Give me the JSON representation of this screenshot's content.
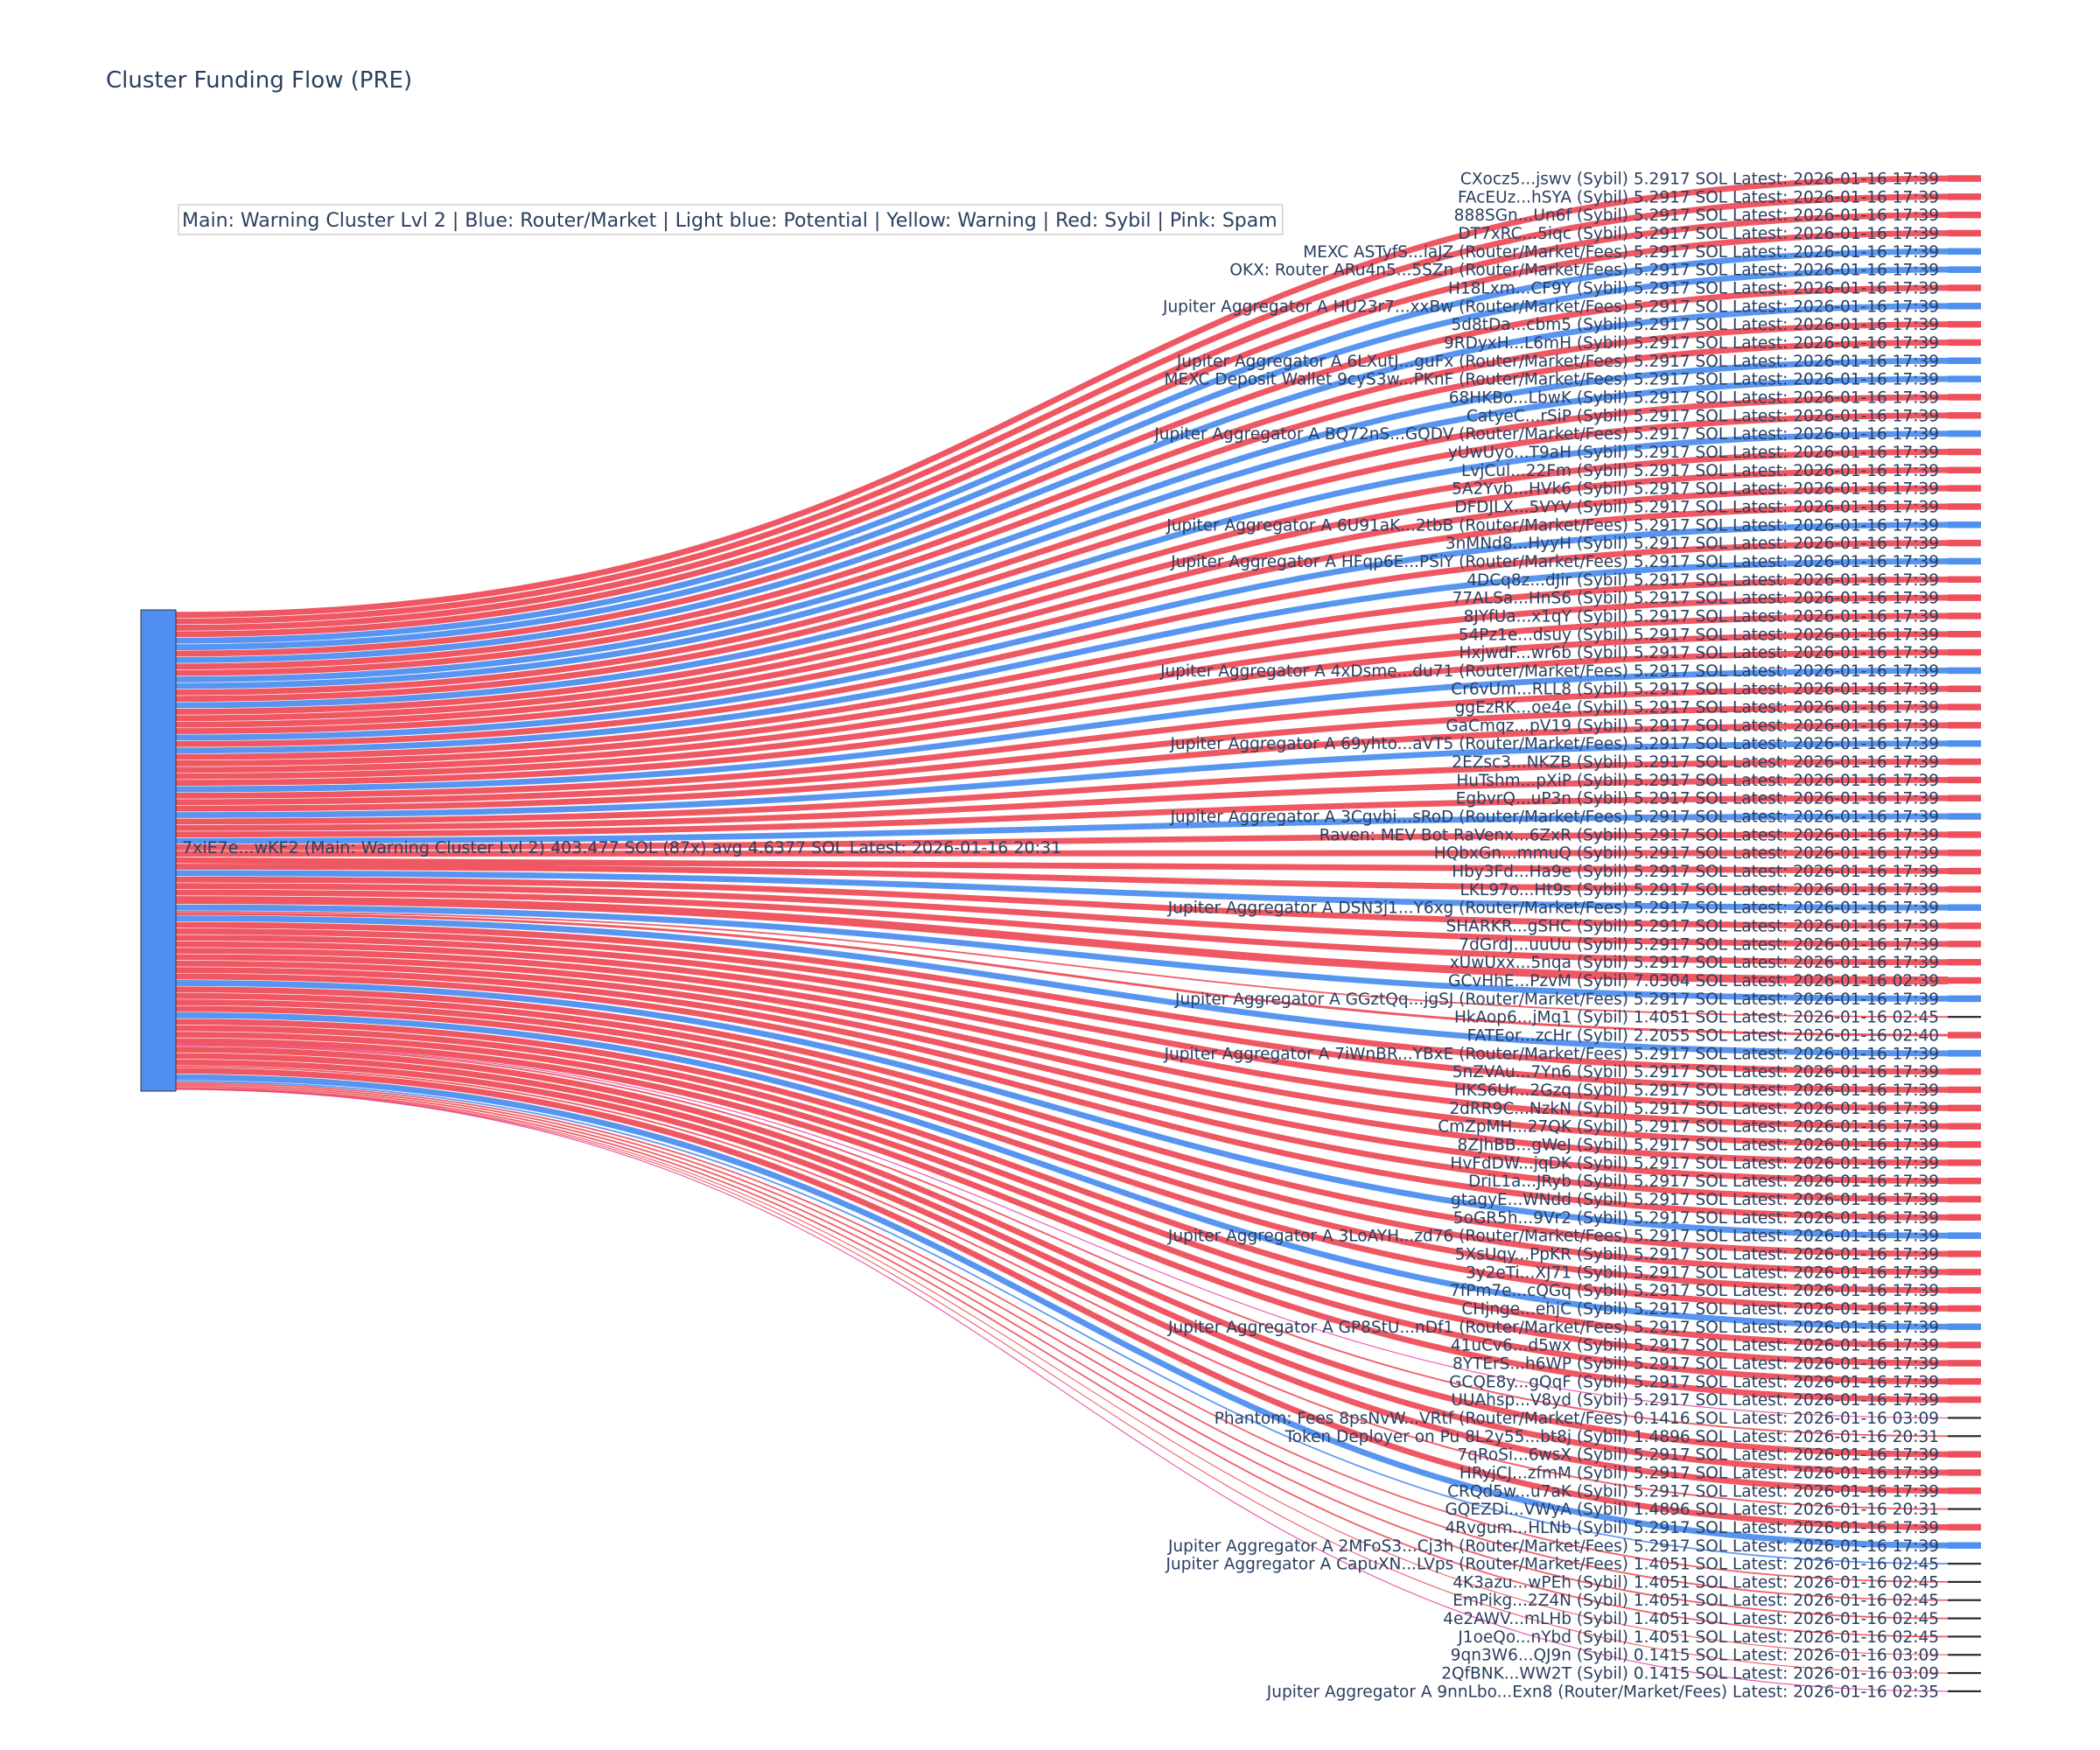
{
  "chart_data": {
    "type": "sankey",
    "title": "Cluster Funding Flow (PRE)",
    "legend_text": "Main: Warning Cluster Lvl 2  |  Blue: Router/Market | Light blue: Potential | Yellow: Warning | Red: Sybil | Pink: Spam",
    "colors": {
      "router": "#4f8ff0",
      "sybil": "#ee4f5a",
      "spam": "#e83ea0",
      "neutral": "#2a2a2a",
      "source": "#4f8ff0"
    },
    "source": {
      "label": "7xiE7e...wKF2 (Main: Warning Cluster Lvl 2) 403.477 SOL (87x) avg 4.6377 SOL Latest: 2026-01-16 20:31"
    },
    "targets": [
      {
        "label": "CXocz5...jswv (Sybil) 5.2917 SOL Latest: 2026-01-16 17:39",
        "cat": "sybil",
        "value": 5.2917
      },
      {
        "label": "FAcEUz...hSYA (Sybil) 5.2917 SOL Latest: 2026-01-16 17:39",
        "cat": "sybil",
        "value": 5.2917
      },
      {
        "label": "888SGn...Un6f (Sybil) 5.2917 SOL Latest: 2026-01-16 17:39",
        "cat": "sybil",
        "value": 5.2917
      },
      {
        "label": "DT7xRC...5iqc (Sybil) 5.2917 SOL Latest: 2026-01-16 17:39",
        "cat": "sybil",
        "value": 5.2917
      },
      {
        "label": "MEXC ASTyfS...iaJZ (Router/Market/Fees) 5.2917 SOL Latest: 2026-01-16 17:39",
        "cat": "router",
        "value": 5.2917
      },
      {
        "label": "OKX: Router ARu4n5...5SZn (Router/Market/Fees) 5.2917 SOL Latest: 2026-01-16 17:39",
        "cat": "router",
        "value": 5.2917
      },
      {
        "label": "H18Lxm...CF9Y (Sybil) 5.2917 SOL Latest: 2026-01-16 17:39",
        "cat": "sybil",
        "value": 5.2917
      },
      {
        "label": "Jupiter Aggregator A HU23r7...xxBw (Router/Market/Fees) 5.2917 SOL Latest: 2026-01-16 17:39",
        "cat": "router",
        "value": 5.2917
      },
      {
        "label": "5d8tDa...cbm5 (Sybil) 5.2917 SOL Latest: 2026-01-16 17:39",
        "cat": "sybil",
        "value": 5.2917
      },
      {
        "label": "9RDyxH...L6mH (Sybil) 5.2917 SOL Latest: 2026-01-16 17:39",
        "cat": "sybil",
        "value": 5.2917
      },
      {
        "label": "Jupiter Aggregator A 6LXutJ...guFx (Router/Market/Fees) 5.2917 SOL Latest: 2026-01-16 17:39",
        "cat": "router",
        "value": 5.2917
      },
      {
        "label": "MEXC Deposit Wallet 9cyS3w...PKnF (Router/Market/Fees) 5.2917 SOL Latest: 2026-01-16 17:39",
        "cat": "router",
        "value": 5.2917
      },
      {
        "label": "68HKBo...LbwK (Sybil) 5.2917 SOL Latest: 2026-01-16 17:39",
        "cat": "sybil",
        "value": 5.2917
      },
      {
        "label": "CatyeC...rSiP (Sybil) 5.2917 SOL Latest: 2026-01-16 17:39",
        "cat": "sybil",
        "value": 5.2917
      },
      {
        "label": "Jupiter Aggregator A BQ72nS...GQDV (Router/Market/Fees) 5.2917 SOL Latest: 2026-01-16 17:39",
        "cat": "router",
        "value": 5.2917
      },
      {
        "label": "yUwUyo...T9aH (Sybil) 5.2917 SOL Latest: 2026-01-16 17:39",
        "cat": "sybil",
        "value": 5.2917
      },
      {
        "label": "LvjCul...22Fm (Sybil) 5.2917 SOL Latest: 2026-01-16 17:39",
        "cat": "sybil",
        "value": 5.2917
      },
      {
        "label": "5A2Yvb...HVk6 (Sybil) 5.2917 SOL Latest: 2026-01-16 17:39",
        "cat": "sybil",
        "value": 5.2917
      },
      {
        "label": "DFDJLX...5VYV (Sybil) 5.2917 SOL Latest: 2026-01-16 17:39",
        "cat": "sybil",
        "value": 5.2917
      },
      {
        "label": "Jupiter Aggregator A 6U91aK...2tbB (Router/Market/Fees) 5.2917 SOL Latest: 2026-01-16 17:39",
        "cat": "router",
        "value": 5.2917
      },
      {
        "label": "3nMNd8...HyyH (Sybil) 5.2917 SOL Latest: 2026-01-16 17:39",
        "cat": "sybil",
        "value": 5.2917
      },
      {
        "label": "Jupiter Aggregator A HFqp6E...PSiY (Router/Market/Fees) 5.2917 SOL Latest: 2026-01-16 17:39",
        "cat": "router",
        "value": 5.2917
      },
      {
        "label": "4DCq8z...dJir (Sybil) 5.2917 SOL Latest: 2026-01-16 17:39",
        "cat": "sybil",
        "value": 5.2917
      },
      {
        "label": "77ALSa...HnS6 (Sybil) 5.2917 SOL Latest: 2026-01-16 17:39",
        "cat": "sybil",
        "value": 5.2917
      },
      {
        "label": "8JYfUa...x1qY (Sybil) 5.2917 SOL Latest: 2026-01-16 17:39",
        "cat": "sybil",
        "value": 5.2917
      },
      {
        "label": "54Pz1e...dsuy (Sybil) 5.2917 SOL Latest: 2026-01-16 17:39",
        "cat": "sybil",
        "value": 5.2917
      },
      {
        "label": "HxjwdF...wr6b (Sybil) 5.2917 SOL Latest: 2026-01-16 17:39",
        "cat": "sybil",
        "value": 5.2917
      },
      {
        "label": "Jupiter Aggregator A 4xDsme...du71 (Router/Market/Fees) 5.2917 SOL Latest: 2026-01-16 17:39",
        "cat": "router",
        "value": 5.2917
      },
      {
        "label": "Cr6vUm...RLL8 (Sybil) 5.2917 SOL Latest: 2026-01-16 17:39",
        "cat": "sybil",
        "value": 5.2917
      },
      {
        "label": "ggEzRK...oe4e (Sybil) 5.2917 SOL Latest: 2026-01-16 17:39",
        "cat": "sybil",
        "value": 5.2917
      },
      {
        "label": "GaCmqz...pV19 (Sybil) 5.2917 SOL Latest: 2026-01-16 17:39",
        "cat": "sybil",
        "value": 5.2917
      },
      {
        "label": "Jupiter Aggregator A 69yhto...aVT5 (Router/Market/Fees) 5.2917 SOL Latest: 2026-01-16 17:39",
        "cat": "router",
        "value": 5.2917
      },
      {
        "label": "2EZsc3...NKZB (Sybil) 5.2917 SOL Latest: 2026-01-16 17:39",
        "cat": "sybil",
        "value": 5.2917
      },
      {
        "label": "HuTshm...pXiP (Sybil) 5.2917 SOL Latest: 2026-01-16 17:39",
        "cat": "sybil",
        "value": 5.2917
      },
      {
        "label": "EgbvrQ...uP3n (Sybil) 5.2917 SOL Latest: 2026-01-16 17:39",
        "cat": "sybil",
        "value": 5.2917
      },
      {
        "label": "Jupiter Aggregator A 3Cgvbi...sRoD (Router/Market/Fees) 5.2917 SOL Latest: 2026-01-16 17:39",
        "cat": "router",
        "value": 5.2917
      },
      {
        "label": "Raven: MEV Bot RaVenx...6ZxR (Sybil) 5.2917 SOL Latest: 2026-01-16 17:39",
        "cat": "sybil",
        "value": 5.2917
      },
      {
        "label": "HQbxGn...mmuQ (Sybil) 5.2917 SOL Latest: 2026-01-16 17:39",
        "cat": "sybil",
        "value": 5.2917
      },
      {
        "label": "Hby3Fd...Ha9e (Sybil) 5.2917 SOL Latest: 2026-01-16 17:39",
        "cat": "sybil",
        "value": 5.2917
      },
      {
        "label": "LKL97o...Ht9s (Sybil) 5.2917 SOL Latest: 2026-01-16 17:39",
        "cat": "sybil",
        "value": 5.2917
      },
      {
        "label": "Jupiter Aggregator A DSN3j1...Y6xg (Router/Market/Fees) 5.2917 SOL Latest: 2026-01-16 17:39",
        "cat": "router",
        "value": 5.2917
      },
      {
        "label": "SHARKR...gSHC (Sybil) 5.2917 SOL Latest: 2026-01-16 17:39",
        "cat": "sybil",
        "value": 5.2917
      },
      {
        "label": "7dGrdJ...uuUu (Sybil) 5.2917 SOL Latest: 2026-01-16 17:39",
        "cat": "sybil",
        "value": 5.2917
      },
      {
        "label": "xUwUxx...5nqa (Sybil) 5.2917 SOL Latest: 2026-01-16 17:39",
        "cat": "sybil",
        "value": 5.2917
      },
      {
        "label": "GCvHhE...PzvM (Sybil) 7.0304 SOL Latest: 2026-01-16 02:39",
        "cat": "sybil",
        "value": 7.0304
      },
      {
        "label": "Jupiter Aggregator A GGztQq...jgSJ (Router/Market/Fees) 5.2917 SOL Latest: 2026-01-16 17:39",
        "cat": "router",
        "value": 5.2917
      },
      {
        "label": "HkAop6...jMq1 (Sybil) 1.4051 SOL Latest: 2026-01-16 02:45",
        "cat": "sybil",
        "value": 1.4051
      },
      {
        "label": "FATEor...zcHr (Sybil) 2.2055 SOL Latest: 2026-01-16 02:40",
        "cat": "sybil",
        "value": 2.2055
      },
      {
        "label": "Jupiter Aggregator A 7iWnBR...YBxE (Router/Market/Fees) 5.2917 SOL Latest: 2026-01-16 17:39",
        "cat": "router",
        "value": 5.2917
      },
      {
        "label": "5nZVAu...7Yn6 (Sybil) 5.2917 SOL Latest: 2026-01-16 17:39",
        "cat": "sybil",
        "value": 5.2917
      },
      {
        "label": "HKS6Ur...2Gzq (Sybil) 5.2917 SOL Latest: 2026-01-16 17:39",
        "cat": "sybil",
        "value": 5.2917
      },
      {
        "label": "2dRR9C...NzkN (Sybil) 5.2917 SOL Latest: 2026-01-16 17:39",
        "cat": "sybil",
        "value": 5.2917
      },
      {
        "label": "CmZpMH...27QK (Sybil) 5.2917 SOL Latest: 2026-01-16 17:39",
        "cat": "sybil",
        "value": 5.2917
      },
      {
        "label": "8ZJhBB...gWeJ (Sybil) 5.2917 SOL Latest: 2026-01-16 17:39",
        "cat": "sybil",
        "value": 5.2917
      },
      {
        "label": "HvFdDW...jqDK (Sybil) 5.2917 SOL Latest: 2026-01-16 17:39",
        "cat": "sybil",
        "value": 5.2917
      },
      {
        "label": "DriL1a...JRyb (Sybil) 5.2917 SOL Latest: 2026-01-16 17:39",
        "cat": "sybil",
        "value": 5.2917
      },
      {
        "label": "gtagyE...WNdd (Sybil) 5.2917 SOL Latest: 2026-01-16 17:39",
        "cat": "sybil",
        "value": 5.2917
      },
      {
        "label": "5oGR5h...9Vr2 (Sybil) 5.2917 SOL Latest: 2026-01-16 17:39",
        "cat": "sybil",
        "value": 5.2917
      },
      {
        "label": "Jupiter Aggregator A 3LoAYH...zd76 (Router/Market/Fees) 5.2917 SOL Latest: 2026-01-16 17:39",
        "cat": "router",
        "value": 5.2917
      },
      {
        "label": "5XsUqy...PpKR (Sybil) 5.2917 SOL Latest: 2026-01-16 17:39",
        "cat": "sybil",
        "value": 5.2917
      },
      {
        "label": "3y2eTi...XJ71 (Sybil) 5.2917 SOL Latest: 2026-01-16 17:39",
        "cat": "sybil",
        "value": 5.2917
      },
      {
        "label": "7fPm7e...cQGq (Sybil) 5.2917 SOL Latest: 2026-01-16 17:39",
        "cat": "sybil",
        "value": 5.2917
      },
      {
        "label": "CHjnge...ehjC (Sybil) 5.2917 SOL Latest: 2026-01-16 17:39",
        "cat": "sybil",
        "value": 5.2917
      },
      {
        "label": "Jupiter Aggregator A GP8StU...nDf1 (Router/Market/Fees) 5.2917 SOL Latest: 2026-01-16 17:39",
        "cat": "router",
        "value": 5.2917
      },
      {
        "label": "41uCv6...d5wx (Sybil) 5.2917 SOL Latest: 2026-01-16 17:39",
        "cat": "sybil",
        "value": 5.2917
      },
      {
        "label": "8YTErS...h6WP (Sybil) 5.2917 SOL Latest: 2026-01-16 17:39",
        "cat": "sybil",
        "value": 5.2917
      },
      {
        "label": "GCQE8y...gQqF (Sybil) 5.2917 SOL Latest: 2026-01-16 17:39",
        "cat": "sybil",
        "value": 5.2917
      },
      {
        "label": "UUAhsp...V8yd (Sybil) 5.2917 SOL Latest: 2026-01-16 17:39",
        "cat": "sybil",
        "value": 5.2917
      },
      {
        "label": "Phantom: Fees 8psNvW...VRtf (Router/Market/Fees) 0.1416 SOL Latest: 2026-01-16 03:09",
        "cat": "router",
        "value": 0.1416
      },
      {
        "label": "Token Deployer on Pu 8L2y55...bt8j (Sybil) 1.4896 SOL Latest: 2026-01-16 20:31",
        "cat": "sybil",
        "value": 1.4896
      },
      {
        "label": "7qRoSi...6wsX (Sybil) 5.2917 SOL Latest: 2026-01-16 17:39",
        "cat": "sybil",
        "value": 5.2917
      },
      {
        "label": "HRyjCJ...zfmM (Sybil) 5.2917 SOL Latest: 2026-01-16 17:39",
        "cat": "sybil",
        "value": 5.2917
      },
      {
        "label": "CRQd5w...u7aK (Sybil) 5.2917 SOL Latest: 2026-01-16 17:39",
        "cat": "sybil",
        "value": 5.2917
      },
      {
        "label": "GQEZDi...VWyA (Sybil) 1.4896 SOL Latest: 2026-01-16 20:31",
        "cat": "sybil",
        "value": 1.4896
      },
      {
        "label": "4Rvgum...HLNb (Sybil) 5.2917 SOL Latest: 2026-01-16 17:39",
        "cat": "sybil",
        "value": 5.2917
      },
      {
        "label": "Jupiter Aggregator A 2MFoS3...Cj3h (Router/Market/Fees) 5.2917 SOL Latest: 2026-01-16 17:39",
        "cat": "router",
        "value": 5.2917
      },
      {
        "label": "Jupiter Aggregator A CapuXN...LVps (Router/Market/Fees) 1.4051 SOL Latest: 2026-01-16 02:45",
        "cat": "router",
        "value": 1.4051
      },
      {
        "label": "4K3azu...wPEh (Sybil) 1.4051 SOL Latest: 2026-01-16 02:45",
        "cat": "sybil",
        "value": 1.4051
      },
      {
        "label": "EmPikg...2Z4N (Sybil) 1.4051 SOL Latest: 2026-01-16 02:45",
        "cat": "sybil",
        "value": 1.4051
      },
      {
        "label": "4e2AWV...mLHb (Sybil) 1.4051 SOL Latest: 2026-01-16 02:45",
        "cat": "sybil",
        "value": 1.4051
      },
      {
        "label": "J1oeQo...nYbd (Sybil) 1.4051 SOL Latest: 2026-01-16 02:45",
        "cat": "sybil",
        "value": 1.4051
      },
      {
        "label": "9qn3W6...QJ9n (Sybil) 0.1415 SOL Latest: 2026-01-16 03:09",
        "cat": "sybil",
        "value": 0.1415
      },
      {
        "label": "2QfBNK...WW2T (Sybil) 0.1415 SOL Latest: 2026-01-16 03:09",
        "cat": "sybil",
        "value": 0.1415
      },
      {
        "label": "Jupiter Aggregator A 9nnLbo...Exn8 (Router/Market/Fees) Latest: 2026-01-16 02:35",
        "cat": "router",
        "value": 0.01
      }
    ]
  }
}
